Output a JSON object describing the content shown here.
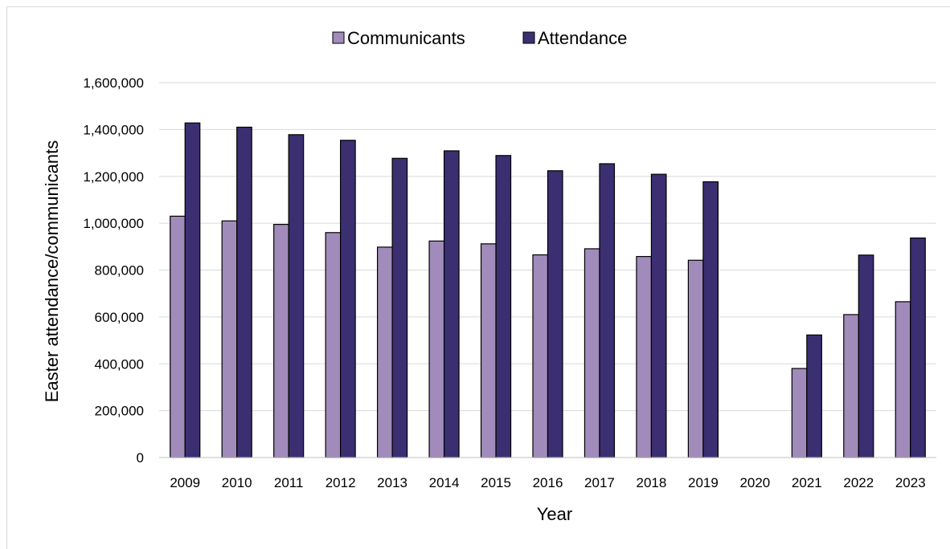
{
  "chart_data": {
    "type": "bar",
    "title": "",
    "xlabel": "Year",
    "ylabel": "Easter attendance/communicants",
    "ylim": [
      0,
      1600000
    ],
    "yticks": [
      "0",
      "200,000",
      "400,000",
      "600,000",
      "800,000",
      "1,000,000",
      "1,200,000",
      "1,400,000",
      "1,600,000"
    ],
    "grid": true,
    "legend_position": "top",
    "categories": [
      "2009",
      "2010",
      "2011",
      "2012",
      "2013",
      "2014",
      "2015",
      "2016",
      "2017",
      "2018",
      "2019",
      "2020",
      "2021",
      "2022",
      "2023"
    ],
    "series": [
      {
        "name": "Communicants",
        "color": "#a08bbb",
        "values": [
          1030000,
          1010000,
          995000,
          960000,
          898000,
          924000,
          912000,
          865000,
          891000,
          858000,
          842000,
          null,
          380000,
          610000,
          665000
        ]
      },
      {
        "name": "Attendance",
        "color": "#3b2f72",
        "values": [
          1428000,
          1410000,
          1378000,
          1354000,
          1277000,
          1309000,
          1289000,
          1224000,
          1254000,
          1209000,
          1177000,
          null,
          523000,
          864000,
          937000
        ]
      }
    ]
  }
}
